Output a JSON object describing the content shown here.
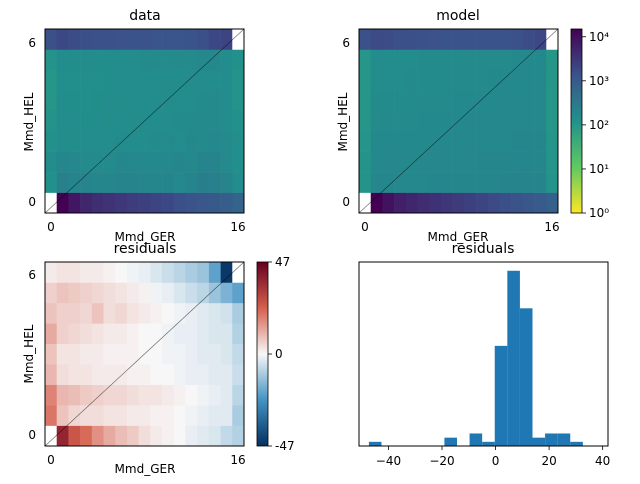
{
  "chart_data": [
    {
      "type": "heatmap",
      "title": "data",
      "xlabel": "Mmd_GER",
      "ylabel": "Mmd_HEL",
      "x_ticks": [
        "0",
        "16"
      ],
      "y_ticks": [
        "0",
        "6"
      ],
      "row_values": [
        [
          0,
          15000,
          8000,
          5000,
          4000,
          3500,
          3000,
          2600,
          2300,
          2000,
          1800,
          1500,
          1300,
          1100,
          1000,
          900,
          700
        ],
        [
          120,
          230,
          200,
          190,
          185,
          180,
          200,
          190,
          180,
          180,
          190,
          170,
          200,
          250,
          230,
          210,
          140
        ],
        [
          150,
          180,
          170,
          160,
          160,
          155,
          180,
          170,
          170,
          165,
          170,
          180,
          175,
          200,
          190,
          160,
          130
        ],
        [
          120,
          150,
          145,
          140,
          150,
          150,
          155,
          150,
          150,
          155,
          160,
          150,
          170,
          160,
          170,
          160,
          130
        ],
        [
          110,
          140,
          140,
          135,
          140,
          145,
          150,
          145,
          150,
          150,
          150,
          155,
          160,
          160,
          160,
          150,
          120
        ],
        [
          100,
          140,
          135,
          130,
          135,
          140,
          145,
          140,
          150,
          150,
          150,
          150,
          150,
          155,
          160,
          150,
          110
        ],
        [
          100,
          130,
          130,
          130,
          130,
          135,
          140,
          140,
          140,
          145,
          145,
          150,
          150,
          150,
          150,
          140,
          110
        ],
        [
          110,
          150,
          145,
          140,
          140,
          145,
          150,
          150,
          155,
          160,
          160,
          160,
          160,
          170,
          170,
          150,
          120
        ],
        [
          1500,
          1800,
          1600,
          1500,
          1400,
          1400,
          1350,
          1300,
          1300,
          1200,
          1200,
          1200,
          1300,
          1500,
          1800,
          2000,
          0
        ]
      ]
    },
    {
      "type": "heatmap",
      "title": "model",
      "xlabel": "Mmd_GER",
      "ylabel": "Mmd_HEL",
      "x_ticks": [
        "0",
        "16"
      ],
      "y_ticks": [
        "0",
        "6"
      ],
      "colorbar": {
        "scale": "log",
        "ticks": [
          "10⁰",
          "10¹",
          "10²",
          "10³",
          "10⁴"
        ],
        "range": [
          1,
          15000
        ]
      },
      "row_values": [
        [
          0,
          16000,
          9000,
          6000,
          5000,
          4200,
          3600,
          3100,
          2700,
          2300,
          2000,
          1700,
          1500,
          1300,
          1100,
          950,
          800
        ],
        [
          110,
          180,
          180,
          175,
          175,
          175,
          180,
          180,
          180,
          180,
          185,
          185,
          190,
          195,
          195,
          195,
          110
        ],
        [
          110,
          170,
          170,
          170,
          170,
          170,
          175,
          175,
          175,
          175,
          180,
          180,
          180,
          185,
          185,
          185,
          105
        ],
        [
          105,
          165,
          165,
          165,
          165,
          165,
          170,
          170,
          170,
          170,
          175,
          175,
          175,
          180,
          180,
          180,
          105
        ],
        [
          100,
          160,
          160,
          160,
          160,
          165,
          165,
          165,
          165,
          170,
          170,
          170,
          170,
          175,
          175,
          175,
          100
        ],
        [
          100,
          155,
          155,
          155,
          160,
          160,
          160,
          160,
          165,
          165,
          165,
          165,
          170,
          170,
          170,
          170,
          100
        ],
        [
          100,
          150,
          150,
          150,
          155,
          155,
          155,
          160,
          160,
          160,
          160,
          165,
          165,
          165,
          165,
          165,
          100
        ],
        [
          100,
          150,
          150,
          150,
          150,
          155,
          155,
          155,
          155,
          160,
          160,
          160,
          160,
          165,
          165,
          165,
          100
        ],
        [
          1400,
          1700,
          1600,
          1500,
          1450,
          1400,
          1350,
          1300,
          1300,
          1250,
          1250,
          1250,
          1300,
          1400,
          1600,
          1900,
          0
        ]
      ]
    },
    {
      "type": "heatmap",
      "title": "residuals",
      "xlabel": "Mmd_GER",
      "ylabel": "Mmd_HEL",
      "x_ticks": [
        "0",
        "16"
      ],
      "y_ticks": [
        "0",
        "6"
      ],
      "colorbar": {
        "scale": "linear",
        "ticks": [
          "47",
          "0",
          "-47"
        ],
        "range": [
          -47,
          47
        ]
      },
      "row_values": [
        [
          0,
          38,
          26,
          22,
          16,
          12,
          9,
          7,
          4,
          2,
          1,
          0,
          -2,
          -3,
          -4,
          -7,
          -9
        ],
        [
          20,
          8,
          5,
          4,
          4,
          3,
          3,
          2,
          2,
          1,
          1,
          0,
          -1,
          -2,
          -3,
          -3,
          -10
        ],
        [
          18,
          10,
          9,
          7,
          6,
          5,
          5,
          4,
          3,
          3,
          2,
          1,
          0,
          -1,
          -2,
          -3,
          -8
        ],
        [
          10,
          4,
          3,
          3,
          2,
          2,
          2,
          1,
          1,
          0,
          0,
          -1,
          -2,
          -2,
          -3,
          -3,
          -6
        ],
        [
          8,
          3,
          3,
          2,
          2,
          1,
          1,
          1,
          0,
          0,
          -1,
          -1,
          -2,
          -3,
          -3,
          -4,
          -7
        ],
        [
          12,
          6,
          5,
          4,
          3,
          2,
          2,
          1,
          0,
          0,
          -1,
          -2,
          -2,
          -3,
          -4,
          -4,
          -9
        ],
        [
          8,
          6,
          6,
          5,
          8,
          4,
          5,
          3,
          2,
          1,
          0,
          -1,
          -2,
          -3,
          -4,
          -5,
          -10
        ],
        [
          6,
          8,
          7,
          6,
          5,
          4,
          3,
          2,
          1,
          -1,
          -2,
          -4,
          -6,
          -8,
          -12,
          -16,
          -20
        ],
        [
          2,
          3,
          3,
          2,
          2,
          1,
          0,
          -1,
          -2,
          -4,
          -6,
          -8,
          -10,
          -12,
          -20,
          -45,
          0
        ]
      ]
    },
    {
      "type": "bar",
      "title": "residuals",
      "xlabel": "",
      "ylabel": "",
      "x_ticks": [
        "−40",
        "−20",
        "0",
        "20",
        "40"
      ],
      "xlim": [
        -51,
        42
      ],
      "bin_edges": [
        -47.3,
        -42.6,
        -37.9,
        -33.2,
        -28.5,
        -23.8,
        -19.1,
        -14.4,
        -9.7,
        -5.0,
        -0.3,
        4.4,
        9.1,
        13.8,
        18.5,
        23.2,
        27.9,
        32.6,
        37.3
      ],
      "counts": [
        1,
        0,
        0,
        0,
        0,
        0,
        2,
        0,
        3,
        1,
        24,
        42,
        33,
        2,
        3,
        3,
        1,
        0,
        1
      ]
    }
  ]
}
